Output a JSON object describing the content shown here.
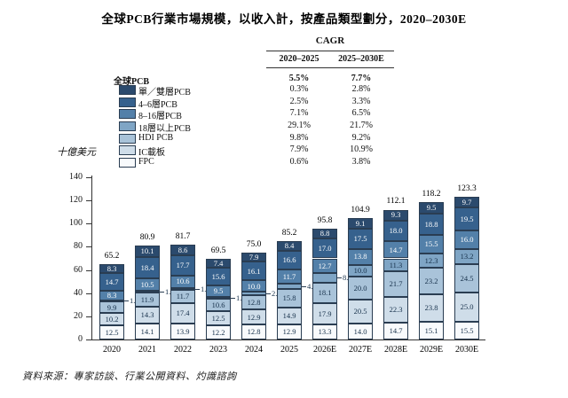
{
  "title": "全球PCB行業市場規模，以收入計，按產品類型劃分，2020–2030E",
  "y_axis_label": "十億美元",
  "source": "資料來源：專家訪談、行業公開資料、灼識諮詢",
  "cagr_table": {
    "title": "CAGR",
    "columns": [
      "2020–2025",
      "2025–2030E"
    ],
    "rows": [
      {
        "label": "全球PCB",
        "bold": true,
        "swatch": null,
        "values": [
          "5.5%",
          "7.7%"
        ]
      },
      {
        "label": "單／雙層PCB",
        "bold": false,
        "swatch": "#2b4a6d",
        "values": [
          "0.3%",
          "2.8%"
        ]
      },
      {
        "label": "4–6層PCB",
        "bold": false,
        "swatch": "#36618d",
        "values": [
          "2.5%",
          "3.3%"
        ]
      },
      {
        "label": "8–16層PCB",
        "bold": false,
        "swatch": "#5380a9",
        "values": [
          "7.1%",
          "6.5%"
        ]
      },
      {
        "label": "18層以上PCB",
        "bold": false,
        "swatch": "#7fa5c5",
        "values": [
          "29.1%",
          "21.7%"
        ]
      },
      {
        "label": "HDI PCB",
        "bold": false,
        "swatch": "#a9c3d9",
        "values": [
          "9.8%",
          "9.2%"
        ]
      },
      {
        "label": "IC載板",
        "bold": false,
        "swatch": "#cfdde9",
        "values": [
          "7.9%",
          "10.9%"
        ]
      },
      {
        "label": "FPC",
        "bold": false,
        "swatch": "#f8fafc",
        "values": [
          "0.6%",
          "3.8%"
        ]
      }
    ]
  },
  "chart_data": {
    "type": "bar",
    "subtype": "stacked",
    "title": "全球PCB行業市場規模，以收入計，按產品類型劃分，2020–2030E",
    "ylabel": "十億美元",
    "ylim": [
      0,
      140
    ],
    "y_ticks": [
      0,
      20,
      40,
      60,
      80,
      100,
      120,
      140
    ],
    "grid": false,
    "legend_position": "upper-left",
    "categories": [
      "2020",
      "2021",
      "2022",
      "2023",
      "2024",
      "2025",
      "2026E",
      "2027E",
      "2028E",
      "2029E",
      "2030E"
    ],
    "totals": [
      65.2,
      80.9,
      81.7,
      69.5,
      75.0,
      85.2,
      95.8,
      104.9,
      112.1,
      118.2,
      123.3
    ],
    "series_top_to_bottom": [
      {
        "name": "單／雙層PCB",
        "color": "#2b4a6d",
        "label_color": "#ffffff",
        "values": [
          8.3,
          10.1,
          8.6,
          7.4,
          7.9,
          8.4,
          8.8,
          9.1,
          9.3,
          9.5,
          9.7
        ]
      },
      {
        "name": "4–6層PCB",
        "color": "#36618d",
        "label_color": "#ffffff",
        "values": [
          14.7,
          18.4,
          17.7,
          15.6,
          16.1,
          16.6,
          17.0,
          17.5,
          18.0,
          18.8,
          19.5
        ]
      },
      {
        "name": "8–16層PCB",
        "color": "#5380a9",
        "label_color": "#ffffff",
        "values": [
          8.3,
          10.5,
          10.6,
          9.5,
          10.0,
          11.7,
          12.7,
          13.8,
          14.7,
          15.5,
          16.0
        ]
      },
      {
        "name": "18層以上PCB",
        "color": "#7fa5c5",
        "label_color": "#16304a",
        "values": [
          1.4,
          1.7,
          1.7,
          1.7,
          2.5,
          4.9,
          8.0,
          10.0,
          11.3,
          12.3,
          13.2
        ],
        "callout_indices": [
          0,
          1,
          2,
          3,
          4,
          5,
          6
        ]
      },
      {
        "name": "HDI PCB",
        "color": "#a9c3d9",
        "label_color": "#16304a",
        "values": [
          9.9,
          11.9,
          11.7,
          10.6,
          12.8,
          15.8,
          18.1,
          20.0,
          21.7,
          23.2,
          24.5
        ]
      },
      {
        "name": "IC載板",
        "color": "#cfdde9",
        "label_color": "#16304a",
        "values": [
          10.2,
          14.3,
          17.4,
          12.5,
          12.9,
          14.9,
          17.9,
          20.5,
          22.3,
          23.8,
          25.0
        ]
      },
      {
        "name": "FPC",
        "color": "#f8fafc",
        "label_color": "#16304a",
        "values": [
          12.5,
          14.1,
          13.9,
          12.2,
          12.8,
          12.9,
          13.3,
          14.0,
          14.7,
          15.1,
          15.5
        ]
      }
    ]
  }
}
